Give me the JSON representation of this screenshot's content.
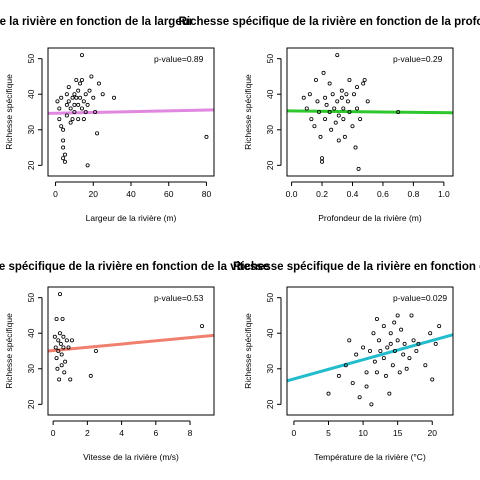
{
  "chart_data": [
    {
      "type": "scatter",
      "title": "Richesse spécifique de la rivière en fonction de la largeur",
      "xlabel": "Largeur de la rivière (m)",
      "ylabel": "Richesse spécifique",
      "annotation": "p-value=0.89",
      "xlim": [
        -4,
        84
      ],
      "ylim": [
        17,
        53
      ],
      "xticks": [
        0,
        20,
        40,
        60,
        80
      ],
      "yticks": [
        20,
        30,
        40,
        50
      ],
      "regression": {
        "x0": -4,
        "y0": 34.6,
        "x1": 84,
        "y1": 35.6,
        "color": "#e087e0"
      },
      "points": [
        [
          1,
          38
        ],
        [
          2,
          36
        ],
        [
          2,
          33
        ],
        [
          3,
          39
        ],
        [
          3,
          31
        ],
        [
          4,
          30
        ],
        [
          4,
          27
        ],
        [
          4,
          25
        ],
        [
          4,
          22
        ],
        [
          5,
          21
        ],
        [
          5,
          23
        ],
        [
          6,
          40
        ],
        [
          6,
          37
        ],
        [
          6,
          34
        ],
        [
          7,
          42
        ],
        [
          7,
          38
        ],
        [
          8,
          36
        ],
        [
          8,
          32
        ],
        [
          9,
          39
        ],
        [
          9,
          33
        ],
        [
          10,
          40
        ],
        [
          10,
          37
        ],
        [
          10,
          35
        ],
        [
          11,
          44
        ],
        [
          11,
          39
        ],
        [
          12,
          41
        ],
        [
          12,
          37
        ],
        [
          12,
          33
        ],
        [
          13,
          43
        ],
        [
          13,
          39
        ],
        [
          14,
          44
        ],
        [
          14,
          36
        ],
        [
          14,
          51
        ],
        [
          15,
          38
        ],
        [
          15,
          33
        ],
        [
          16,
          40
        ],
        [
          16,
          35
        ],
        [
          17,
          37
        ],
        [
          17,
          20
        ],
        [
          18,
          41
        ],
        [
          19,
          45
        ],
        [
          20,
          39
        ],
        [
          21,
          35
        ],
        [
          22,
          29
        ],
        [
          23,
          43
        ],
        [
          25,
          40
        ],
        [
          31,
          39
        ],
        [
          80,
          28
        ]
      ]
    },
    {
      "type": "scatter",
      "title": "Richesse spécifique de la rivière en fonction de la profondeur",
      "xlabel": "Profondeur de la rivière (m)",
      "ylabel": "Richesse spécifique",
      "annotation": "p-value=0.29",
      "xlim": [
        -0.03,
        1.06
      ],
      "ylim": [
        17,
        53
      ],
      "xticks": [
        0.0,
        0.2,
        0.4,
        0.6,
        0.8,
        1.0
      ],
      "yticks": [
        20,
        30,
        40,
        50
      ],
      "regression": {
        "x0": -0.03,
        "y0": 35.3,
        "x1": 1.06,
        "y1": 34.8,
        "color": "#2ec82e"
      },
      "points": [
        [
          0.08,
          39
        ],
        [
          0.1,
          36
        ],
        [
          0.12,
          40
        ],
        [
          0.13,
          33
        ],
        [
          0.15,
          31
        ],
        [
          0.16,
          44
        ],
        [
          0.17,
          38
        ],
        [
          0.18,
          35
        ],
        [
          0.19,
          28
        ],
        [
          0.2,
          22
        ],
        [
          0.2,
          21
        ],
        [
          0.21,
          46
        ],
        [
          0.22,
          39
        ],
        [
          0.22,
          33
        ],
        [
          0.23,
          37
        ],
        [
          0.25,
          43
        ],
        [
          0.25,
          35
        ],
        [
          0.26,
          30
        ],
        [
          0.27,
          40
        ],
        [
          0.28,
          36
        ],
        [
          0.29,
          32
        ],
        [
          0.3,
          51
        ],
        [
          0.3,
          38
        ],
        [
          0.31,
          34
        ],
        [
          0.31,
          27
        ],
        [
          0.33,
          41
        ],
        [
          0.33,
          39
        ],
        [
          0.34,
          36
        ],
        [
          0.34,
          33
        ],
        [
          0.35,
          28
        ],
        [
          0.36,
          40
        ],
        [
          0.37,
          38
        ],
        [
          0.38,
          44
        ],
        [
          0.38,
          35
        ],
        [
          0.4,
          31
        ],
        [
          0.41,
          40
        ],
        [
          0.42,
          25
        ],
        [
          0.43,
          42
        ],
        [
          0.43,
          36
        ],
        [
          0.44,
          19
        ],
        [
          0.45,
          33
        ],
        [
          0.47,
          43
        ],
        [
          0.48,
          44
        ],
        [
          0.5,
          38
        ],
        [
          0.7,
          35
        ]
      ]
    },
    {
      "type": "scatter",
      "title": "Richesse spécifique de la rivière en fonction de la vitesse",
      "xlabel": "Vitesse de la rivière (m/s)",
      "ylabel": "Richesse spécifique",
      "annotation": "p-value=0.53",
      "xlim": [
        -0.3,
        9.4
      ],
      "ylim": [
        17,
        53
      ],
      "xticks": [
        0,
        2,
        4,
        6,
        8
      ],
      "yticks": [
        20,
        30,
        40,
        50
      ],
      "regression": {
        "x0": -0.3,
        "y0": 35.0,
        "x1": 9.4,
        "y1": 39.4,
        "color": "#f07f6e"
      },
      "points": [
        [
          0.1,
          39
        ],
        [
          0.15,
          36
        ],
        [
          0.2,
          44
        ],
        [
          0.2,
          33
        ],
        [
          0.25,
          30
        ],
        [
          0.3,
          38
        ],
        [
          0.3,
          35
        ],
        [
          0.35,
          27
        ],
        [
          0.4,
          51
        ],
        [
          0.4,
          40
        ],
        [
          0.45,
          37
        ],
        [
          0.5,
          31
        ],
        [
          0.5,
          34
        ],
        [
          0.55,
          44
        ],
        [
          0.6,
          39
        ],
        [
          0.6,
          36
        ],
        [
          0.65,
          29
        ],
        [
          0.7,
          32
        ],
        [
          0.8,
          38
        ],
        [
          0.9,
          36
        ],
        [
          1.0,
          27
        ],
        [
          1.1,
          38
        ],
        [
          2.2,
          28
        ],
        [
          2.5,
          35
        ],
        [
          8.7,
          42
        ]
      ]
    },
    {
      "type": "scatter",
      "title": "Richesse spécifique de la rivière en fonction de la température",
      "xlabel": "Température de la rivière (°C)",
      "ylabel": "Richesse spécifique",
      "annotation": "p-value=0.029",
      "xlim": [
        -1,
        23
      ],
      "ylim": [
        17,
        53
      ],
      "xticks": [
        0,
        5,
        10,
        15,
        20
      ],
      "yticks": [
        20,
        30,
        40,
        50
      ],
      "regression": {
        "x0": -1,
        "y0": 26.6,
        "x1": 23,
        "y1": 39.6,
        "color": "#22bccc"
      },
      "points": [
        [
          5,
          23
        ],
        [
          6.5,
          28
        ],
        [
          7.5,
          31
        ],
        [
          8,
          38
        ],
        [
          8.5,
          26
        ],
        [
          9,
          34
        ],
        [
          9.5,
          22
        ],
        [
          10,
          36
        ],
        [
          10.5,
          29
        ],
        [
          10.5,
          25
        ],
        [
          11,
          35
        ],
        [
          11.2,
          20
        ],
        [
          11.5,
          40
        ],
        [
          11.7,
          32
        ],
        [
          12,
          44
        ],
        [
          12,
          29
        ],
        [
          12.3,
          38
        ],
        [
          12.5,
          35
        ],
        [
          13,
          42
        ],
        [
          13,
          33
        ],
        [
          13.3,
          28
        ],
        [
          13.5,
          36
        ],
        [
          13.8,
          23
        ],
        [
          14,
          40
        ],
        [
          14,
          37
        ],
        [
          14.3,
          31
        ],
        [
          14.5,
          43
        ],
        [
          14.6,
          35
        ],
        [
          15,
          45
        ],
        [
          15,
          38
        ],
        [
          15.3,
          29
        ],
        [
          15.5,
          41
        ],
        [
          15.8,
          34
        ],
        [
          16,
          37
        ],
        [
          16.3,
          30
        ],
        [
          16.7,
          33
        ],
        [
          17,
          45
        ],
        [
          17.3,
          38
        ],
        [
          17.7,
          35
        ],
        [
          18,
          37
        ],
        [
          19,
          31
        ],
        [
          19.7,
          40
        ],
        [
          20,
          27
        ],
        [
          20.5,
          37
        ],
        [
          21,
          42
        ]
      ]
    }
  ]
}
